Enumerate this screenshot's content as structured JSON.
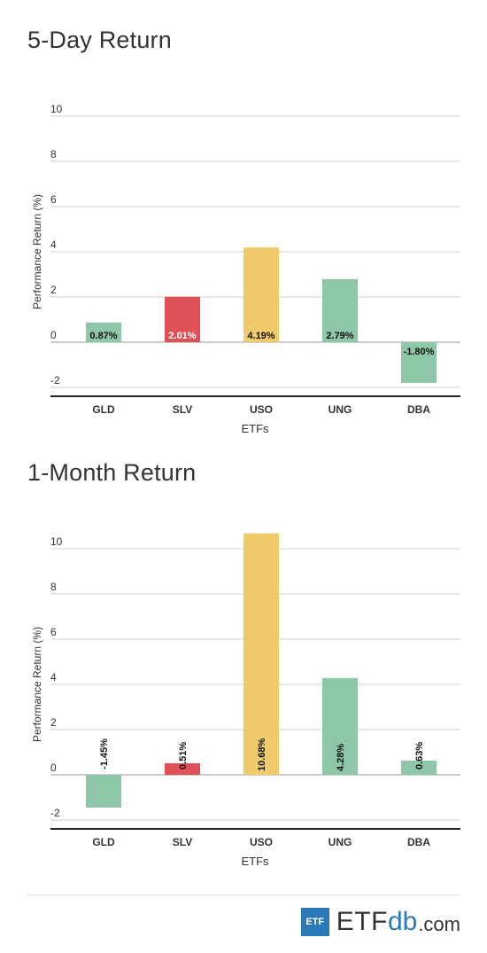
{
  "colors": {
    "green": "#8ec6a8",
    "red": "#de5257",
    "yellow": "#f0cb69",
    "grid": "#d0d0d0",
    "axis": "#222222"
  },
  "chart_data": [
    {
      "type": "bar",
      "title": "5-Day Return",
      "xlabel": "ETFs",
      "ylabel": "Performance Return (%)",
      "ylim": [
        -2,
        10
      ],
      "yticks": [
        "10",
        "8",
        "6",
        "4",
        "2",
        "0",
        "-2"
      ],
      "grid": true,
      "label_orientation": "horizontal",
      "categories": [
        "GLD",
        "SLV",
        "USO",
        "UNG",
        "DBA"
      ],
      "values": [
        0.87,
        2.01,
        4.19,
        2.79,
        -1.8
      ],
      "labels": [
        "0.87%",
        "2.01%",
        "4.19%",
        "2.79%",
        "-1.80%"
      ],
      "bar_colors": [
        "green",
        "red",
        "yellow",
        "green",
        "green"
      ]
    },
    {
      "type": "bar",
      "title": "1-Month Return",
      "xlabel": "ETFs",
      "ylabel": "Performance Return (%)",
      "ylim": [
        -2,
        10
      ],
      "yticks": [
        "10",
        "8",
        "6",
        "4",
        "2",
        "0",
        "-2"
      ],
      "grid": true,
      "label_orientation": "vertical",
      "categories": [
        "GLD",
        "SLV",
        "USO",
        "UNG",
        "DBA"
      ],
      "values": [
        -1.45,
        0.51,
        10.68,
        4.28,
        0.63
      ],
      "labels": [
        "-1.45%",
        "0.51%",
        "10.68%",
        "4.28%",
        "0.63%"
      ],
      "bar_colors": [
        "green",
        "red",
        "yellow",
        "green",
        "green"
      ]
    }
  ],
  "brand": {
    "box": "ETF",
    "etf": "ETF",
    "db": "db",
    "com": ".com"
  }
}
